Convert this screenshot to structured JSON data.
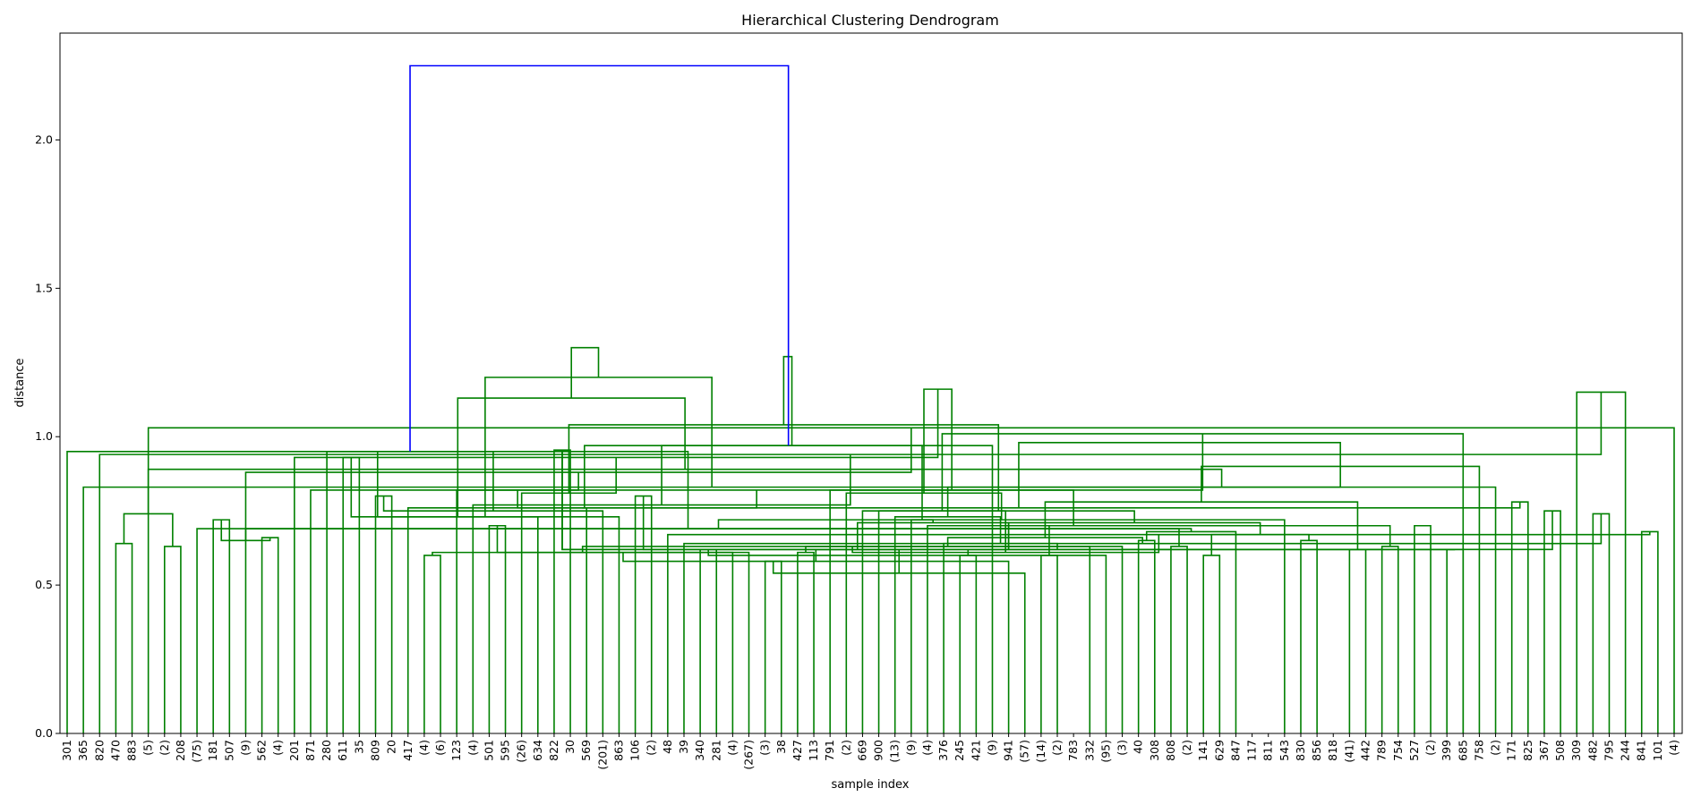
{
  "chart_data": {
    "type": "dendrogram",
    "title": "Hierarchical Clustering Dendrogram",
    "xlabel": "sample index",
    "ylabel": "distance",
    "ylim": [
      0,
      2.36
    ],
    "yticks": [
      "0.0",
      "0.5",
      "1.0",
      "1.5",
      "2.0"
    ],
    "colors": {
      "root": "#0000ff",
      "cluster": "#008000",
      "axis": "#000000"
    },
    "leaves": [
      "301",
      "365",
      "820",
      "470",
      "883",
      "(5)",
      "(2)",
      "208",
      "(75)",
      "181",
      "507",
      "(9)",
      "562",
      "(4)",
      "201",
      "871",
      "280",
      "611",
      "35",
      "809",
      "20",
      "417",
      "(4)",
      "(6)",
      "123",
      "(4)",
      "501",
      "595",
      "(26)",
      "634",
      "822",
      "30",
      "569",
      "(201)",
      "863",
      "106",
      "(2)",
      "48",
      "39",
      "340",
      "281",
      "(4)",
      "(267)",
      "(3)",
      "38",
      "427",
      "113",
      "791",
      "(2)",
      "669",
      "900",
      "(13)",
      "(9)",
      "(4)",
      "376",
      "245",
      "421",
      "(9)",
      "941",
      "(57)",
      "(14)",
      "(2)",
      "783",
      "332",
      "(95)",
      "(3)",
      "40",
      "308",
      "808",
      "(2)",
      "141",
      "629",
      "847",
      "117",
      "811",
      "543",
      "830",
      "856",
      "818",
      "(41)",
      "442",
      "789",
      "754",
      "527",
      "(2)",
      "399",
      "685",
      "758",
      "(2)",
      "171",
      "825",
      "367",
      "508",
      "309",
      "482",
      "795",
      "244",
      "841",
      "101",
      "(4)"
    ],
    "merges": [
      [
        3,
        4,
        0.64
      ],
      [
        6,
        7,
        0.63
      ],
      [
        9,
        10,
        0.72
      ],
      [
        12,
        13,
        0.66
      ],
      [
        26,
        27,
        0.7
      ],
      [
        22,
        23,
        0.6
      ],
      [
        30,
        31,
        0.955
      ],
      [
        35,
        36,
        0.8
      ],
      [
        43,
        44,
        0.58
      ],
      [
        42,
        104,
        0.61
      ],
      [
        41,
        105,
        0.61
      ],
      [
        39,
        40,
        0.62
      ],
      [
        45,
        46,
        0.61
      ],
      [
        55,
        56,
        0.6
      ],
      [
        60,
        61,
        0.6
      ],
      [
        59,
        108,
        0.54
      ],
      [
        58,
        109,
        0.58
      ],
      [
        66,
        67,
        0.65
      ],
      [
        65,
        110,
        0.63
      ],
      [
        64,
        111,
        0.6
      ],
      [
        63,
        112,
        0.63
      ],
      [
        68,
        69,
        0.63
      ],
      [
        113,
        114,
        0.62
      ],
      [
        70,
        71,
        0.6
      ],
      [
        115,
        116,
        0.62
      ],
      [
        72,
        117,
        0.68
      ],
      [
        76,
        77,
        0.65
      ],
      [
        79,
        80,
        0.62
      ],
      [
        81,
        82,
        0.63
      ],
      [
        83,
        84,
        0.7
      ],
      [
        85,
        86,
        0.62
      ],
      [
        91,
        92,
        0.75
      ],
      [
        94,
        95,
        0.74
      ],
      [
        97,
        98,
        0.68
      ],
      [
        100,
        101,
        0.74
      ],
      [
        102,
        103,
        0.65
      ],
      [
        107,
        130,
        0.62
      ],
      [
        106,
        130,
        0.62
      ],
      [
        106,
        131,
        0.62
      ],
      [
        38,
        132,
        0.64
      ],
      [
        37,
        133,
        0.67
      ],
      [
        126,
        123,
        0.67
      ],
      [
        125,
        135,
        0.69
      ],
      [
        128,
        136,
        0.7
      ],
      [
        124,
        137,
        0.71
      ],
      [
        54,
        138,
        0.64
      ],
      [
        120,
        139,
        0.66
      ],
      [
        118,
        140,
        0.61
      ],
      [
        122,
        141,
        0.71
      ],
      [
        75,
        142,
        0.72
      ],
      [
        53,
        143,
        0.7
      ],
      [
        52,
        144,
        0.72
      ],
      [
        51,
        145,
        0.73
      ],
      [
        127,
        146,
        0.78
      ],
      [
        50,
        147,
        0.75
      ],
      [
        49,
        148,
        0.75
      ],
      [
        48,
        149,
        0.81
      ],
      [
        47,
        150,
        0.82
      ],
      [
        89,
        90,
        0.78
      ],
      [
        88,
        152,
        0.83
      ],
      [
        87,
        153,
        0.9
      ],
      [
        86,
        154,
        1.01
      ],
      [
        99,
        134,
        1.03
      ],
      [
        93,
        96,
        1.15
      ],
      [
        156,
        157,
        1.16
      ],
      [
        8,
        121,
        0.69
      ],
      [
        5,
        159,
        0.89
      ],
      [
        1,
        160,
        0.83
      ],
      [
        15,
        161,
        0.82
      ],
      [
        11,
        162,
        0.88
      ],
      [
        2,
        163,
        0.94
      ],
      [
        14,
        164,
        0.93
      ],
      [
        0,
        165,
        0.95
      ],
      [
        17,
        18,
        0.93
      ],
      [
        19,
        20,
        0.8
      ],
      [
        168,
        21,
        0.76
      ],
      [
        169,
        24,
        0.82
      ],
      [
        170,
        25,
        0.77
      ],
      [
        171,
        28,
        0.81
      ],
      [
        172,
        29,
        0.73
      ],
      [
        173,
        34,
        0.73
      ],
      [
        174,
        33,
        0.75
      ],
      [
        175,
        32,
        0.76
      ],
      [
        176,
        158,
        0.76
      ],
      [
        177,
        151,
        0.97
      ],
      [
        178,
        155,
        1.04
      ],
      [
        179,
        166,
        1.13
      ],
      [
        167,
        180,
        1.2
      ],
      [
        16,
        181,
        0.95
      ],
      [
        182,
        57,
        0.97
      ],
      [
        183,
        160,
        0.98
      ],
      [
        184,
        185,
        1.27
      ],
      [
        186,
        187,
        1.3
      ],
      [
        188,
        189,
        2.25
      ]
    ]
  }
}
